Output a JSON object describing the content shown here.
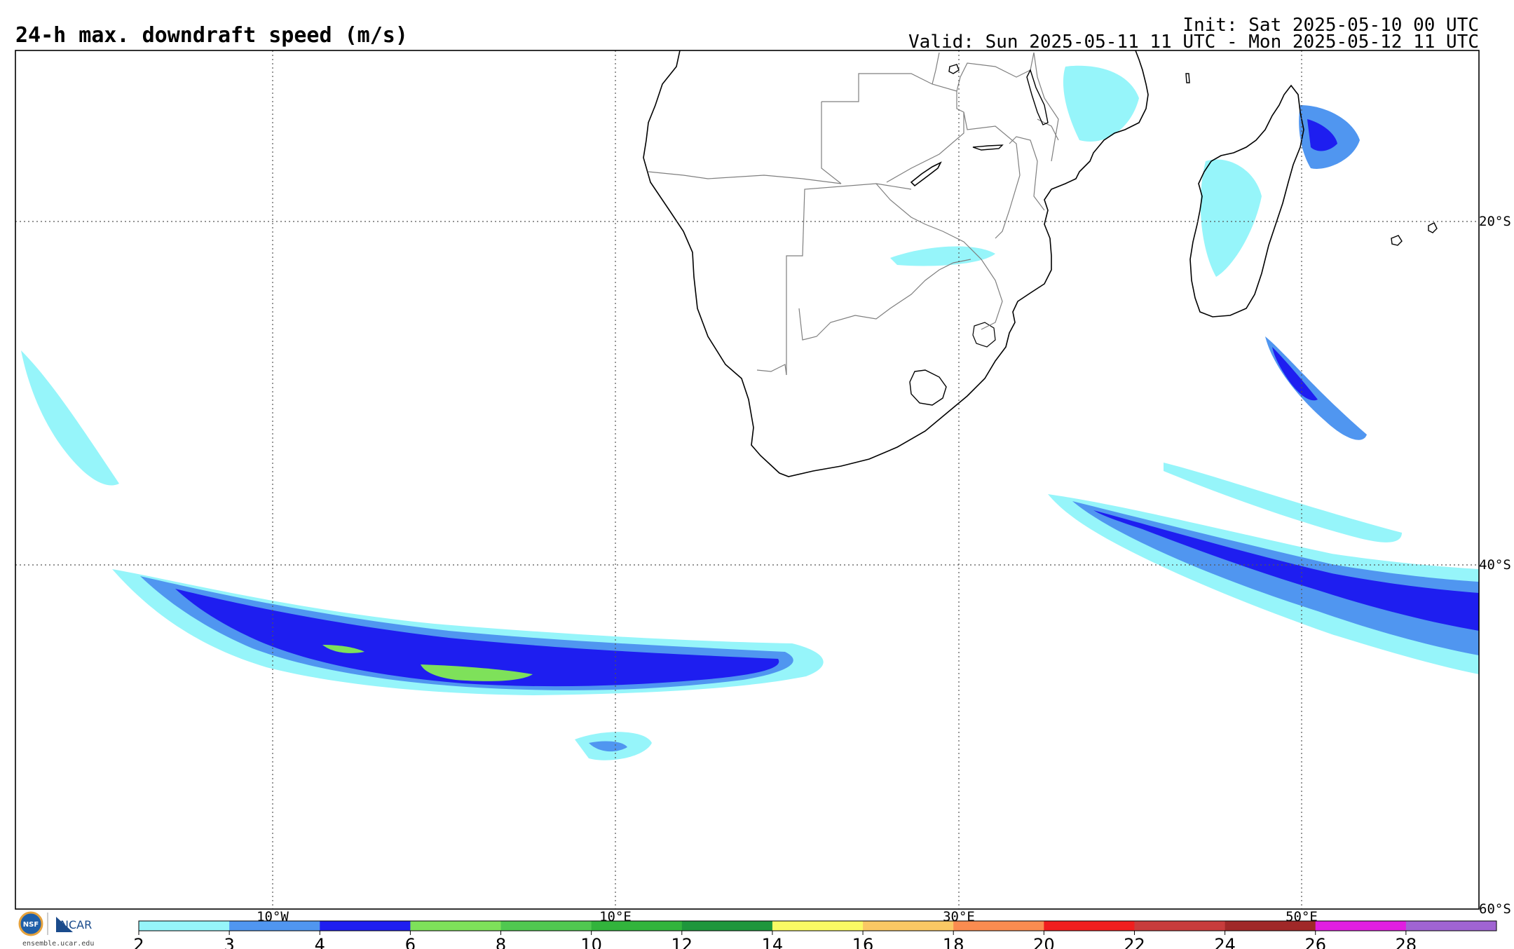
{
  "header": {
    "title": "24-h max. downdraft speed (m/s)",
    "init": "Init: Sat 2025-05-10 00 UTC",
    "valid": "Valid: Sun 2025-05-11 11 UTC - Mon 2025-05-12 11 UTC"
  },
  "map": {
    "lon_labels": [
      "10°W",
      "10°E",
      "30°E",
      "50°E"
    ],
    "lat_labels": [
      "20°S",
      "40°S",
      "60°S"
    ],
    "colors": {
      "coast": "#000000",
      "border": "#7f7f7f",
      "grid": "#555555",
      "frame": "#000000"
    }
  },
  "colorbar": {
    "ticks": [
      "2",
      "3",
      "4",
      "6",
      "8",
      "10",
      "12",
      "14",
      "16",
      "18",
      "20",
      "22",
      "24",
      "26",
      "28"
    ],
    "colors": [
      "#96f5fa",
      "#5096f0",
      "#1e1ef0",
      "#7ee15a",
      "#50c850",
      "#32b43c",
      "#1e963c",
      "#fafa64",
      "#fac864",
      "#fa8c50",
      "#f01e1e",
      "#c83c3c",
      "#a02828",
      "#e11ee1",
      "#a064d2"
    ]
  },
  "logos": {
    "nsf": "NSF",
    "ncar": "NCAR",
    "url": "ensemble.ucar.edu"
  }
}
